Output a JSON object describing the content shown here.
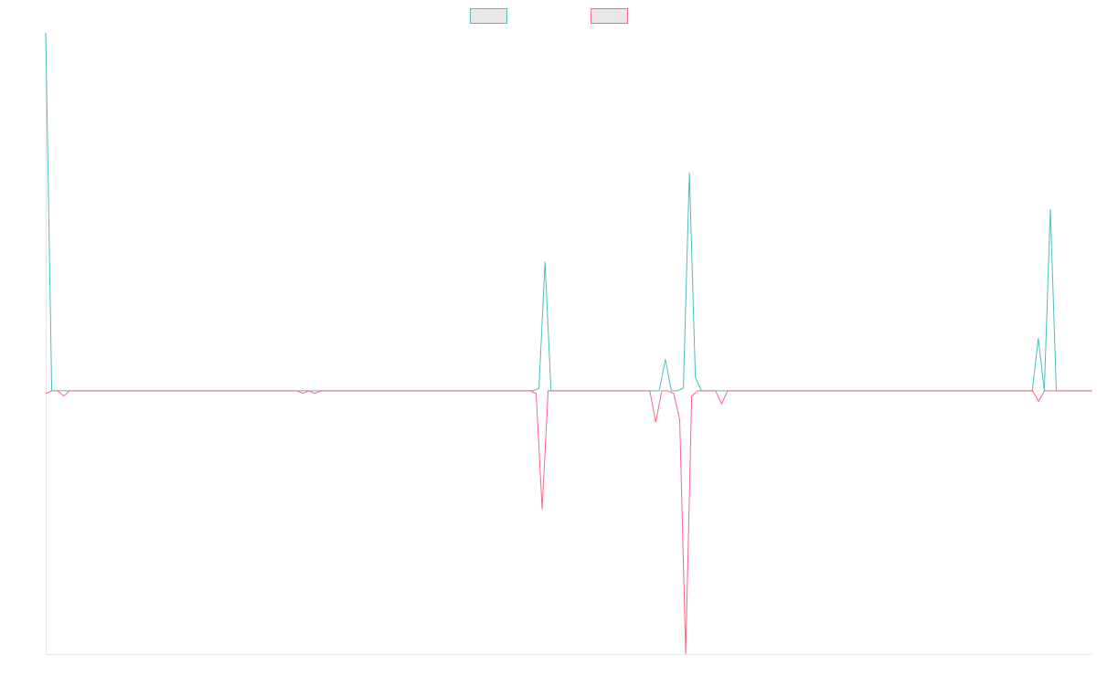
{
  "chart_data": {
    "type": "line",
    "title": "",
    "xlabel": "",
    "ylabel": "",
    "grid": false,
    "legend_position": "top-center",
    "ylim": [
      -100,
      136
    ],
    "series": [
      {
        "name": "",
        "color": "#4bc0c0",
        "swatch_fill": "#e8e8e8",
        "values": [
          136,
          0,
          0,
          0,
          0,
          0,
          0,
          0,
          0,
          0,
          0,
          0,
          0,
          0,
          0,
          0,
          0,
          0,
          0,
          0,
          0,
          0,
          0,
          0,
          0,
          0,
          0,
          0,
          0,
          0,
          0,
          0,
          0,
          0,
          0,
          0,
          0,
          0,
          0,
          0,
          0,
          0,
          0,
          0,
          0,
          0,
          0,
          0,
          0,
          0,
          0,
          0,
          0,
          0,
          0,
          0,
          0,
          0,
          0,
          0,
          0,
          0,
          0,
          0,
          0,
          0,
          0,
          0,
          0,
          0,
          0,
          0,
          0,
          0,
          0,
          0,
          0,
          0,
          0,
          0,
          0,
          0,
          1,
          49,
          0,
          0,
          0,
          0,
          0,
          0,
          0,
          0,
          0,
          0,
          0,
          0,
          0,
          0,
          0,
          0,
          0,
          0,
          0,
          12,
          0,
          0,
          1,
          83,
          5,
          0,
          0,
          0,
          0,
          0,
          0,
          0,
          0,
          0,
          0,
          0,
          0,
          0,
          0,
          0,
          0,
          0,
          0,
          0,
          0,
          0,
          0,
          0,
          0,
          0,
          0,
          0,
          0,
          0,
          0,
          0,
          0,
          0,
          0,
          0,
          0,
          0,
          0,
          0,
          0,
          0,
          0,
          0,
          0,
          0,
          0,
          0,
          0,
          0,
          0,
          0,
          0,
          0,
          0,
          0,
          0,
          20,
          0,
          69,
          0,
          0,
          0,
          0,
          0,
          0,
          0
        ]
      },
      {
        "name": "",
        "color": "#ff6384",
        "swatch_fill": "#e8e8e8",
        "values": [
          -1,
          0,
          0,
          -2,
          0,
          0,
          0,
          0,
          0,
          0,
          0,
          0,
          0,
          0,
          0,
          0,
          0,
          0,
          0,
          0,
          0,
          0,
          0,
          0,
          0,
          0,
          0,
          0,
          0,
          0,
          0,
          0,
          0,
          0,
          0,
          0,
          0,
          0,
          0,
          0,
          0,
          0,
          0,
          -1,
          0,
          -1,
          0,
          0,
          0,
          0,
          0,
          0,
          0,
          0,
          0,
          0,
          0,
          0,
          0,
          0,
          0,
          0,
          0,
          0,
          0,
          0,
          0,
          0,
          0,
          0,
          0,
          0,
          0,
          0,
          0,
          0,
          0,
          0,
          0,
          0,
          0,
          0,
          -1,
          -45,
          0,
          0,
          0,
          0,
          0,
          0,
          0,
          0,
          0,
          0,
          0,
          0,
          0,
          0,
          0,
          0,
          0,
          0,
          -12,
          0,
          0,
          -1,
          -11,
          -100,
          -2,
          0,
          0,
          0,
          0,
          -5,
          0,
          0,
          0,
          0,
          0,
          0,
          0,
          0,
          0,
          0,
          0,
          0,
          0,
          0,
          0,
          0,
          0,
          0,
          0,
          0,
          0,
          0,
          0,
          0,
          0,
          0,
          0,
          0,
          0,
          0,
          0,
          0,
          0,
          0,
          0,
          0,
          0,
          0,
          0,
          0,
          0,
          0,
          0,
          0,
          0,
          0,
          0,
          0,
          0,
          0,
          0,
          0,
          -4,
          0,
          0,
          0,
          0,
          0,
          0,
          0,
          0,
          0
        ]
      }
    ]
  }
}
